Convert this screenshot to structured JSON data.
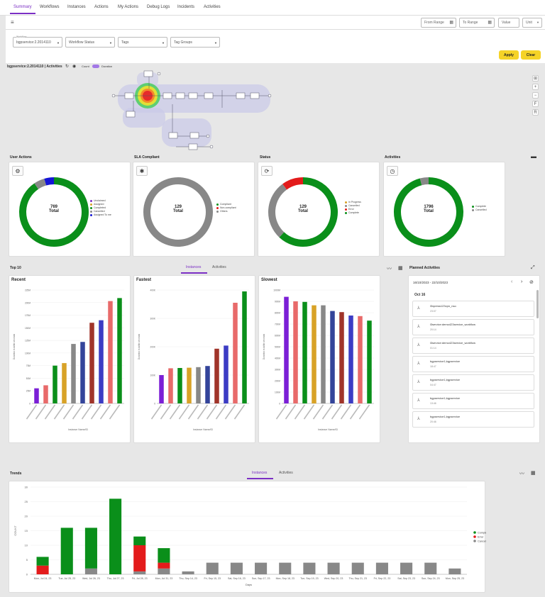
{
  "nav": {
    "tabs": [
      "Summary",
      "Workflows",
      "Instances",
      "Actions",
      "My Actions",
      "Debug Logs",
      "Incidents",
      "Activities"
    ],
    "active": "Summary"
  },
  "filters": {
    "from_range": "From Range",
    "to_range": "To Range",
    "value": "Value",
    "unit": "Unit",
    "workflow_label": "Workflow",
    "workflow_value": "bgpservice:2.2014110",
    "workflow_status": "Workflow Status",
    "tags": "Tags",
    "tag_groups": "Tag Groups",
    "apply": "Apply",
    "clear": "Clear"
  },
  "graph_header": {
    "title": "bgpservice:2.2014110 | Activities",
    "count_label": "Count",
    "duration_label": "Duration"
  },
  "graph_tools": [
    "⊞",
    "+",
    "−",
    "F",
    "R"
  ],
  "summary": {
    "user_actions": {
      "title": "User Actions",
      "total": "769",
      "total_label": "Total",
      "legend": [
        {
          "label": "Unclaimed",
          "color": "#7b2fc4"
        },
        {
          "label": "Assigned",
          "color": "#d8a227"
        },
        {
          "label": "Completed",
          "color": "#0a8f1a"
        },
        {
          "label": "Cancelled",
          "color": "#888888"
        },
        {
          "label": "Assigned To me",
          "color": "#1515d6"
        }
      ]
    },
    "sla": {
      "title": "SLA Compliant",
      "total": "129",
      "total_label": "Total",
      "legend": [
        {
          "label": "Compliant",
          "color": "#0a8f1a"
        },
        {
          "label": "Non-compliant",
          "color": "#e31b1b"
        },
        {
          "label": "Others",
          "color": "#888888"
        }
      ]
    },
    "status": {
      "title": "Status",
      "total": "129",
      "total_label": "Total",
      "legend": [
        {
          "label": "In Progress",
          "color": "#d8a227"
        },
        {
          "label": "Cancelled",
          "color": "#888888"
        },
        {
          "label": "Error",
          "color": "#e31b1b"
        },
        {
          "label": "Complete",
          "color": "#0a8f1a"
        }
      ]
    },
    "activities": {
      "title": "Activities",
      "total": "1796",
      "total_label": "Total",
      "legend": [
        {
          "label": "Complete",
          "color": "#0a8f1a"
        },
        {
          "label": "Cancelled",
          "color": "#888888"
        }
      ]
    }
  },
  "top10": {
    "title": "Top 10",
    "tabs": [
      "Instances",
      "Activities"
    ],
    "active_tab": "Instances",
    "recent_title": "Recent",
    "fastest_title": "Fastest",
    "slowest_title": "Slowest",
    "ylabel": "Duration in ddhh seconds",
    "xlabel": "Instance Name/ID"
  },
  "planned": {
    "title": "Planned Activities",
    "range": "16/10/2023 - 22/10/2023",
    "day": "Oct 16",
    "items": [
      {
        "name": "l3xpress123vpn_nso",
        "time": "23:07"
      },
      {
        "name": "l3service:demo423service_workflow",
        "time": "20:14"
      },
      {
        "name": "l3service:demo423service_workflow",
        "time": "01:14"
      },
      {
        "name": "bgpservice1,bgpservice",
        "time": "18:47"
      },
      {
        "name": "bgpservice1,bgpservice",
        "time": "04:47"
      },
      {
        "name": "bgpservice1,bgpservice",
        "time": "13:46"
      },
      {
        "name": "bgpservice1,bgpservice",
        "time": "20:46"
      }
    ]
  },
  "trends": {
    "title": "Trends",
    "tabs": [
      "Instances",
      "Activities"
    ],
    "active_tab": "Instances"
  },
  "chart_data": [
    {
      "type": "donut",
      "title": "User Actions",
      "series": [
        {
          "name": "Completed",
          "value": 730,
          "color": "#0a8f1a"
        },
        {
          "name": "Cancelled",
          "value": 0,
          "color": "#888888"
        },
        {
          "name": "Assigned To me",
          "value": 0,
          "color": "#1515d6"
        }
      ],
      "segments": [
        {
          "value": 0.905,
          "color": "#0a8f1a"
        },
        {
          "value": 0.05,
          "color": "#888888"
        },
        {
          "value": 0.045,
          "color": "#1515d6"
        }
      ]
    },
    {
      "type": "donut",
      "title": "SLA Compliant",
      "segments": [
        {
          "value": 1.0,
          "color": "#888888"
        }
      ]
    },
    {
      "type": "donut",
      "title": "Status",
      "segments": [
        {
          "value": 0.62,
          "color": "#0a8f1a"
        },
        {
          "value": 0.28,
          "color": "#888888"
        },
        {
          "value": 0.1,
          "color": "#e31b1b"
        }
      ]
    },
    {
      "type": "donut",
      "title": "Activities",
      "segments": [
        {
          "value": 0.96,
          "color": "#0a8f1a"
        },
        {
          "value": 0.04,
          "color": "#888888"
        }
      ]
    },
    {
      "type": "bar",
      "title": "Recent",
      "ylim": [
        0,
        225
      ],
      "yticks": [
        "0",
        "25M",
        "50M",
        "75M",
        "100M",
        "125M",
        "150M",
        "175M",
        "200M",
        "225M"
      ],
      "values": [
        30,
        36,
        75,
        80,
        118,
        122,
        160,
        165,
        203,
        209
      ],
      "colors": [
        "#7b1fd6",
        "#e86a6a",
        "#0a8f1a",
        "#d8a227",
        "#888888",
        "#33449a",
        "#a0342a",
        "#3c3cc4",
        "#e86a6a",
        "#0a8f1a"
      ]
    },
    {
      "type": "bar",
      "title": "Fastest",
      "ylim": [
        0,
        400
      ],
      "yticks": [
        "0",
        "100K",
        "200K",
        "300K",
        "400K"
      ],
      "values": [
        100,
        124,
        125,
        126,
        128,
        132,
        193,
        204,
        355,
        395
      ],
      "colors": [
        "#7b1fd6",
        "#e86a6a",
        "#0a8f1a",
        "#d8a227",
        "#888888",
        "#33449a",
        "#a0342a",
        "#3c3cc4",
        "#e86a6a",
        "#0a8f1a"
      ]
    },
    {
      "type": "bar",
      "title": "Slowest",
      "ylim": [
        0,
        1000
      ],
      "yticks": [
        "0",
        "100M",
        "200M",
        "300M",
        "400M",
        "500M",
        "600M",
        "700M",
        "800M",
        "900M",
        "1000M"
      ],
      "values": [
        940,
        900,
        895,
        865,
        865,
        815,
        805,
        775,
        770,
        730
      ],
      "colors": [
        "#7b1fd6",
        "#e86a6a",
        "#0a8f1a",
        "#d8a227",
        "#888888",
        "#33449a",
        "#a0342a",
        "#3c3cc4",
        "#e86a6a",
        "#0a8f1a"
      ]
    },
    {
      "type": "stacked-bar",
      "title": "Trends",
      "xlabel": "Days",
      "ylabel": "COUNT",
      "ylim": [
        0,
        30
      ],
      "yticks": [
        "0",
        "5",
        "10",
        "15",
        "20",
        "25",
        "30"
      ],
      "categories": [
        "Mon, Jul 24, 23",
        "Tue, Jul 25, 23",
        "Wed, Jul 26, 23",
        "Thu, Jul 27, 23",
        "Fri, Jul 28, 23",
        "Mon, Jul 31, 23",
        "Thu, Sep 14, 23",
        "Fri, Sep 15, 23",
        "Sat, Sep 16, 23",
        "Sun, Sep 17, 23",
        "Mon, Sep 18, 23",
        "Tue, Sep 19, 23",
        "Wed, Sep 20, 23",
        "Thu, Sep 21, 23",
        "Fri, Sep 22, 23",
        "Sat, Sep 23, 23",
        "Sun, Sep 24, 23",
        "Mon, Sep 25, 23"
      ],
      "series": [
        {
          "name": "Complete",
          "color": "#0a8f1a",
          "values": [
            3,
            16,
            14,
            26,
            3,
            5,
            0,
            0,
            0,
            0,
            0,
            0,
            0,
            0,
            0,
            0,
            0,
            0
          ]
        },
        {
          "name": "Error",
          "color": "#e31b1b",
          "values": [
            3,
            0,
            0,
            0,
            9,
            2,
            0,
            0,
            0,
            0,
            0,
            0,
            0,
            0,
            0,
            0,
            0,
            0
          ]
        },
        {
          "name": "Cancelled",
          "color": "#888888",
          "values": [
            0,
            0,
            2,
            0,
            1,
            2,
            1,
            4,
            4,
            4,
            4,
            4,
            4,
            4,
            4,
            4,
            4,
            2
          ]
        }
      ]
    }
  ]
}
